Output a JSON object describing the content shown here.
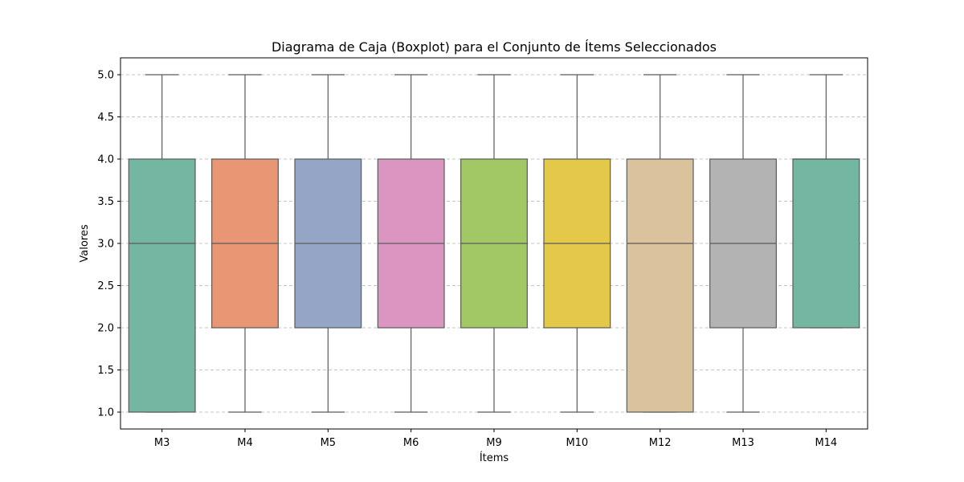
{
  "chart_data": {
    "type": "boxplot",
    "title": "Diagrama de Caja (Boxplot) para el Conjunto de Ítems Seleccionados",
    "xlabel": "Ítems",
    "ylabel": "Valores",
    "ylim": [
      0.8,
      5.2
    ],
    "yticks": [
      "1.0",
      "1.5",
      "2.0",
      "2.5",
      "3.0",
      "3.5",
      "4.0",
      "4.5",
      "5.0"
    ],
    "grid": "y-dashed",
    "categories": [
      "M3",
      "M4",
      "M5",
      "M6",
      "M9",
      "M10",
      "M12",
      "M13",
      "M14"
    ],
    "boxes": [
      {
        "label": "M3",
        "whisker_low": 1,
        "q1": 1,
        "median": 3,
        "q3": 4,
        "whisker_high": 5,
        "color": "#73b6a1"
      },
      {
        "label": "M4",
        "whisker_low": 1,
        "q1": 2,
        "median": 3,
        "q3": 4,
        "whisker_high": 5,
        "color": "#e99675"
      },
      {
        "label": "M5",
        "whisker_low": 1,
        "q1": 2,
        "median": 3,
        "q3": 4,
        "whisker_high": 5,
        "color": "#94a5c5"
      },
      {
        "label": "M6",
        "whisker_low": 1,
        "q1": 2,
        "median": 3,
        "q3": 4,
        "whisker_high": 5,
        "color": "#da95c0"
      },
      {
        "label": "M9",
        "whisker_low": 1,
        "q1": 2,
        "median": 3,
        "q3": 4,
        "whisker_high": 5,
        "color": "#a2c865"
      },
      {
        "label": "M10",
        "whisker_low": 1,
        "q1": 2,
        "median": 3,
        "q3": 4,
        "whisker_high": 5,
        "color": "#e3c84a"
      },
      {
        "label": "M12",
        "whisker_low": 1,
        "q1": 1,
        "median": 3,
        "q3": 4,
        "whisker_high": 5,
        "color": "#dac29c"
      },
      {
        "label": "M13",
        "whisker_low": 1,
        "q1": 2,
        "median": 3,
        "q3": 4,
        "whisker_high": 5,
        "color": "#b3b3b3"
      },
      {
        "label": "M14",
        "whisker_low": 2,
        "q1": 2,
        "median": 4,
        "q3": 4,
        "whisker_high": 5,
        "color": "#73b6a1"
      }
    ]
  }
}
